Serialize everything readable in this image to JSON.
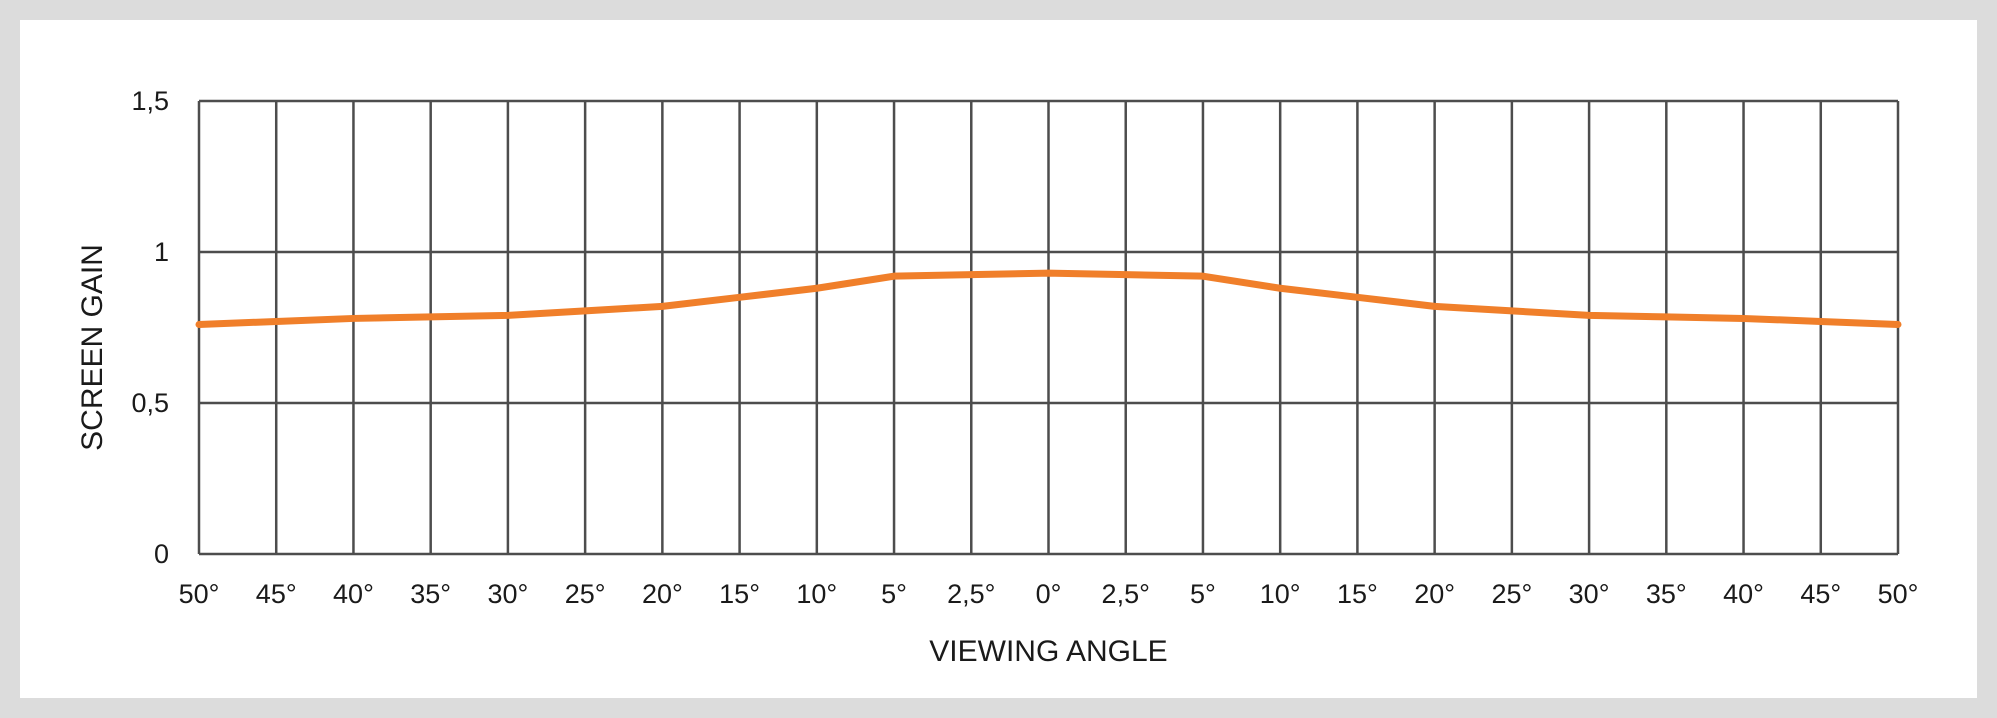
{
  "chart_data": {
    "type": "line",
    "title": "",
    "xlabel": "VIEWING ANGLE",
    "ylabel": "SCREEN GAIN",
    "categories": [
      "50°",
      "45°",
      "40°",
      "35°",
      "30°",
      "25°",
      "20°",
      "15°",
      "10°",
      "5°",
      "2,5°",
      "0°",
      "2,5°",
      "5°",
      "10°",
      "15°",
      "20°",
      "25°",
      "30°",
      "35°",
      "40°",
      "45°",
      "50°"
    ],
    "yticks": [
      "0",
      "0,5",
      "1",
      "1,5"
    ],
    "ylim": [
      0,
      1.5
    ],
    "grid": true,
    "series": [
      {
        "values": [
          0.76,
          0.77,
          0.78,
          0.785,
          0.79,
          0.805,
          0.82,
          0.85,
          0.88,
          0.92,
          0.925,
          0.93,
          0.925,
          0.92,
          0.88,
          0.85,
          0.82,
          0.805,
          0.79,
          0.785,
          0.78,
          0.77,
          0.76
        ],
        "color": "#f07f2a"
      }
    ],
    "colors": {
      "grid": "#4d4d4d",
      "line": "#f07f2a"
    }
  }
}
